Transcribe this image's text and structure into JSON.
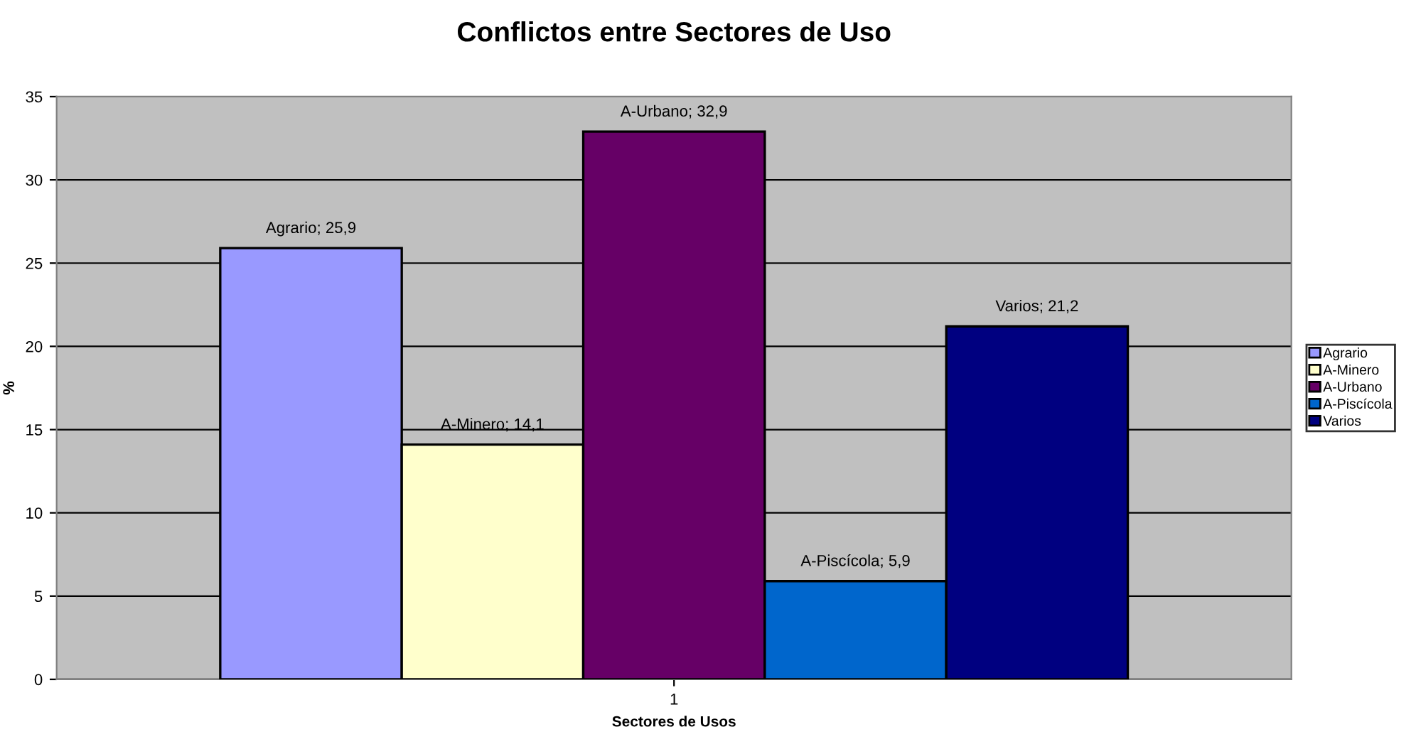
{
  "chart_data": {
    "type": "bar",
    "title": "Conflictos entre Sectores de Uso",
    "xlabel": "Sectores de Usos",
    "ylabel": "%",
    "categories": [
      "1"
    ],
    "series": [
      {
        "name": "Agrario",
        "color": "#9999ff",
        "values": [
          25.9
        ],
        "value_labels": [
          "Agrario; 25,9"
        ]
      },
      {
        "name": "A-Minero",
        "color": "#ffffcc",
        "values": [
          14.1
        ],
        "value_labels": [
          "A-Minero; 14,1"
        ]
      },
      {
        "name": "A-Urbano",
        "color": "#660066",
        "values": [
          32.9
        ],
        "value_labels": [
          "A-Urbano; 32,9"
        ]
      },
      {
        "name": "A-Piscícola",
        "color": "#0066cc",
        "values": [
          5.9
        ],
        "value_labels": [
          "A-Piscícola; 5,9"
        ]
      },
      {
        "name": "Varios",
        "color": "#000080",
        "values": [
          21.2
        ],
        "value_labels": [
          "Varios; 21,2"
        ]
      }
    ],
    "ylim": [
      0,
      35
    ],
    "yticks": [
      0,
      5,
      10,
      15,
      20,
      25,
      30,
      35
    ],
    "grid": "y",
    "legend": "right"
  }
}
